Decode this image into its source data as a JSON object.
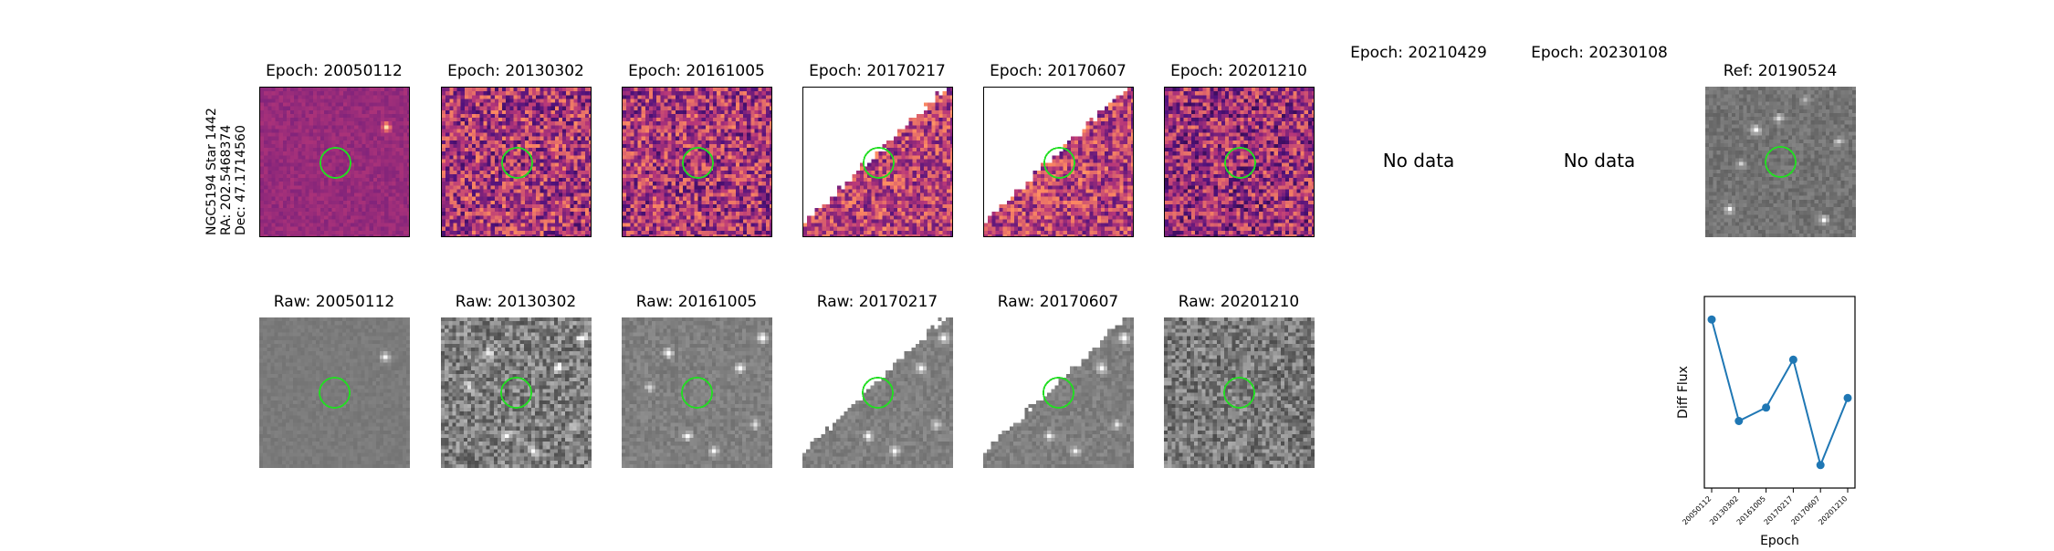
{
  "figure": {
    "target_label": [
      "NGC5194 Star 1442",
      "RA: 202.5468374",
      "Dec: 47.1714560"
    ],
    "diff_titles": [
      "Epoch: 20050112",
      "Epoch: 20130302",
      "Epoch: 20161005",
      "Epoch: 20170217",
      "Epoch: 20170607",
      "Epoch: 20201210",
      "Epoch: 20210429",
      "Epoch: 20230108"
    ],
    "raw_titles": [
      "Raw: 20050112",
      "Raw: 20130302",
      "Raw: 20161005",
      "Raw: 20170217",
      "Raw: 20170607",
      "Raw: 20201210"
    ],
    "no_data_text": "No data",
    "ref_title": "Ref: 20190524",
    "colors": {
      "aperture": "#22dd22",
      "line": "#1f77b4",
      "diff_cmap": "magma",
      "raw_cmap": "gray"
    }
  },
  "chart_data": {
    "type": "line",
    "title": "",
    "xlabel": "Epoch",
    "ylabel": "Diff Flux",
    "categories": [
      "20050112",
      "20130302",
      "20161005",
      "20170217",
      "20170607",
      "20201210"
    ],
    "values": [
      0.88,
      0.35,
      0.42,
      0.67,
      0.12,
      0.47
    ],
    "ylim": [
      0,
      1
    ],
    "y_ticks_shown": false,
    "grid": false,
    "marker": "circle"
  }
}
